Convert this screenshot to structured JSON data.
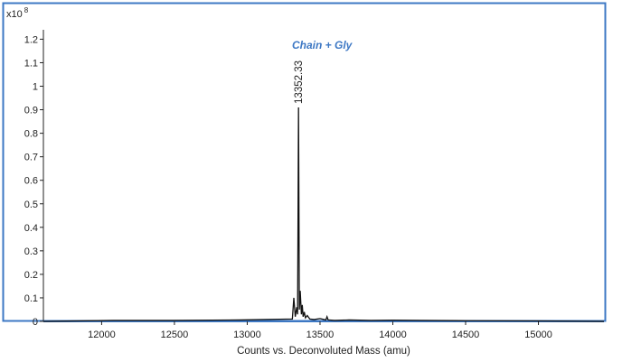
{
  "chart_data": {
    "type": "line",
    "xlabel": "Counts vs. Deconvoluted Mass (amu)",
    "ylabel": "",
    "y_exponent_label": "x10",
    "y_exponent": "8",
    "xlim": [
      11600,
      15450
    ],
    "ylim": [
      0,
      1.24
    ],
    "xticks": [
      12000,
      12500,
      13000,
      13500,
      14000,
      14500,
      15000
    ],
    "yticks": [
      0,
      0.1,
      0.2,
      0.3,
      0.4,
      0.5,
      0.6,
      0.7,
      0.8,
      0.9,
      1,
      1.1,
      1.2
    ],
    "ytick_labels": [
      "0",
      "0.1",
      "0.2",
      "0.3",
      "0.4",
      "0.5",
      "0.6",
      "0.7",
      "0.8",
      "0.9",
      "1",
      "1.1",
      "1.2"
    ],
    "grid": false,
    "frame_color": "#3d78c4",
    "trace_color": "#111111",
    "annotation_color": "#3d78c4",
    "series": [
      {
        "x": [
          11600,
          12080,
          12500,
          12950,
          13310,
          13320,
          13330,
          13340,
          13346,
          13352.33,
          13358,
          13364,
          13372,
          13378,
          13384,
          13392,
          13400,
          13412,
          13430,
          13460,
          13500,
          13540,
          13548,
          13556,
          13600,
          13700,
          13850,
          14000,
          14200,
          14500,
          15000,
          15450
        ],
        "y": [
          0,
          0.004,
          0.004,
          0.006,
          0.01,
          0.1,
          0.02,
          0.06,
          0.03,
          0.91,
          0.05,
          0.13,
          0.03,
          0.07,
          0.02,
          0.04,
          0.015,
          0.025,
          0.01,
          0.008,
          0.012,
          0.006,
          0.02,
          0.006,
          0.004,
          0.006,
          0.004,
          0.005,
          0.004,
          0.003,
          0.002,
          0
        ]
      }
    ],
    "peak_label": {
      "x": 13352.33,
      "y": 0.91,
      "text": "13352.33"
    },
    "annotation": {
      "x": 13352.33,
      "text": "Chain + Gly"
    }
  }
}
